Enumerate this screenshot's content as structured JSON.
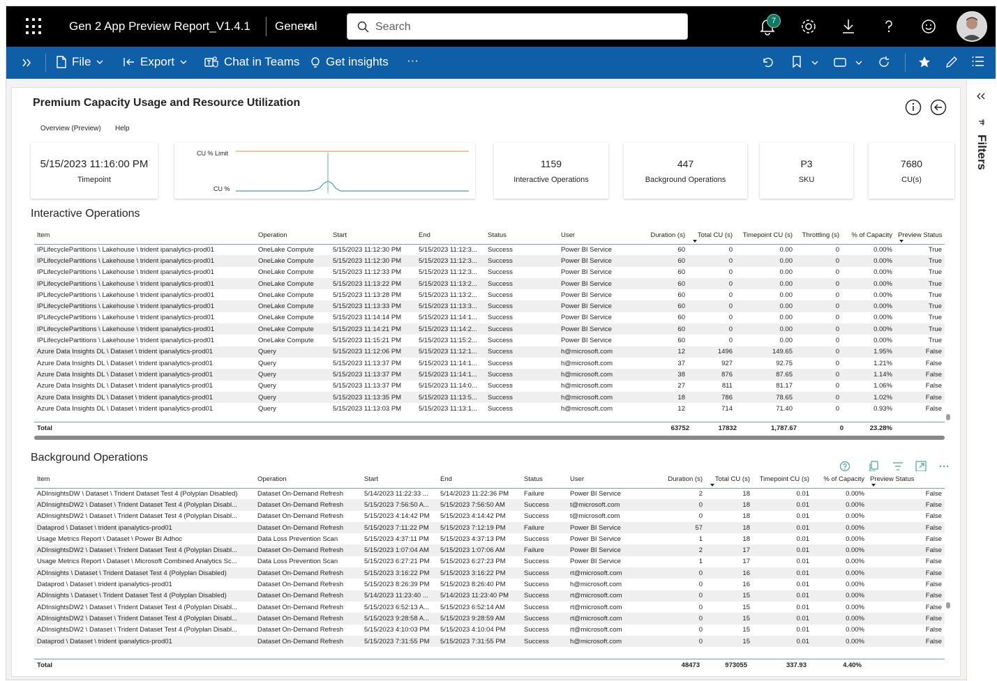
{
  "topbar": {
    "app_title": "Gen 2 App Preview Report_V1.4.1",
    "workspace": "General",
    "search_placeholder": "Search",
    "notification_count": "7"
  },
  "commandbar": {
    "file_label": "File",
    "export_label": "Export",
    "chat_label": "Chat in Teams",
    "insights_label": "Get insights",
    "more_label": "···"
  },
  "report": {
    "title": "Premium Capacity Usage and Resource Utilization",
    "pages": [
      "Overview (Preview)",
      "Help"
    ],
    "cards": {
      "timepoint_value": "5/15/2023 11:16:00 PM",
      "timepoint_label": "Timepoint",
      "interactive_value": "1159",
      "interactive_label": "Interactive Operations",
      "background_value": "447",
      "background_label": "Background Operations",
      "sku_value": "P3",
      "sku_label": "SKU",
      "cu_value": "7680",
      "cu_label": "CU(s)"
    },
    "sparkline": {
      "limit_label": "CU % Limit",
      "cu_label": "CU %",
      "limit_color": "#e8a45b",
      "cu_color": "#41a89b"
    }
  },
  "filters": {
    "label": "Filters"
  },
  "interactive": {
    "title": "Interactive Operations",
    "columns": [
      "Item",
      "Operation",
      "Start",
      "End",
      "Status",
      "User",
      "Duration (s)",
      "Total CU (s)",
      "Timepoint CU (s)",
      "Throttling (s)",
      "% of Capacity",
      "Preview Status"
    ],
    "rows": [
      [
        "IPLifecyclePartitions \\ Lakehouse \\ trident ipanalytics-prod01",
        "OneLake Compute",
        "5/15/2023 11:12:30 PM",
        "5/15/2023 11:12:3...",
        "Success",
        "Power BI Service",
        "60",
        "0",
        "0.00",
        "0",
        "0.00%",
        "True"
      ],
      [
        "IPLifecyclePartitions \\ Lakehouse \\ trident ipanalytics-prod01",
        "OneLake Compute",
        "5/15/2023 11:12:30 PM",
        "5/15/2023 11:12:3...",
        "Success",
        "Power BI Service",
        "60",
        "0",
        "0.00",
        "0",
        "0.00%",
        "True"
      ],
      [
        "IPLifecyclePartitions \\ Lakehouse \\ trident ipanalytics-prod01",
        "OneLake Compute",
        "5/15/2023 11:12:33 PM",
        "5/15/2023 11:12:3...",
        "Success",
        "Power BI Service",
        "60",
        "0",
        "0.00",
        "0",
        "0.00%",
        "True"
      ],
      [
        "IPLifecyclePartitions \\ Lakehouse \\ trident ipanalytics-prod01",
        "OneLake Compute",
        "5/15/2023 11:13:22 PM",
        "5/15/2023 11:13:2...",
        "Success",
        "Power BI Service",
        "60",
        "0",
        "0.00",
        "0",
        "0.00%",
        "True"
      ],
      [
        "IPLifecyclePartitions \\ Lakehouse \\ trident ipanalytics-prod01",
        "OneLake Compute",
        "5/15/2023 11:13:28 PM",
        "5/15/2023 11:13:2...",
        "Success",
        "Power BI Service",
        "60",
        "0",
        "0.00",
        "0",
        "0.00%",
        "True"
      ],
      [
        "IPLifecyclePartitions \\ Lakehouse \\ trident ipanalytics-prod01",
        "OneLake Compute",
        "5/15/2023 11:13:33 PM",
        "5/15/2023 11:13:3...",
        "Success",
        "Power BI Service",
        "60",
        "0",
        "0.00",
        "0",
        "0.00%",
        "True"
      ],
      [
        "IPLifecyclePartitions \\ Lakehouse \\ trident ipanalytics-prod01",
        "OneLake Compute",
        "5/15/2023 11:14:14 PM",
        "5/15/2023 11:14:1...",
        "Success",
        "Power BI Service",
        "60",
        "0",
        "0.00",
        "0",
        "0.00%",
        "True"
      ],
      [
        "IPLifecyclePartitions \\ Lakehouse \\ trident ipanalytics-prod01",
        "OneLake Compute",
        "5/15/2023 11:14:21 PM",
        "5/15/2023 11:14:2...",
        "Success",
        "Power BI Service",
        "60",
        "0",
        "0.00",
        "0",
        "0.00%",
        "True"
      ],
      [
        "IPLifecyclePartitions \\ Lakehouse \\ trident ipanalytics-prod01",
        "OneLake Compute",
        "5/15/2023 11:15:21 PM",
        "5/15/2023 11:15:2...",
        "Success",
        "Power BI Service",
        "60",
        "0",
        "0.00",
        "0",
        "0.00%",
        "True"
      ],
      [
        "Azure Data Insights DL \\ Dataset \\ trident ipanalytics-prod01",
        "Query",
        "5/15/2023 11:12:06 PM",
        "5/15/2023 11:12:1...",
        "Success",
        "h@microsoft.com",
        "12",
        "1496",
        "149.65",
        "0",
        "1.95%",
        "False"
      ],
      [
        "Azure Data Insights DL \\ Dataset \\ trident ipanalytics-prod01",
        "Query",
        "5/15/2023 11:13:37 PM",
        "5/15/2023 11:14:1...",
        "Success",
        "h@microsoft.com",
        "37",
        "927",
        "92.75",
        "0",
        "1.21%",
        "False"
      ],
      [
        "Azure Data Insights DL \\ Dataset \\ trident ipanalytics-prod01",
        "Query",
        "5/15/2023 11:13:37 PM",
        "5/15/2023 11:14:1...",
        "Success",
        "h@microsoft.com",
        "38",
        "876",
        "87.65",
        "0",
        "1.14%",
        "False"
      ],
      [
        "Azure Data Insights DL \\ Dataset \\ trident ipanalytics-prod01",
        "Query",
        "5/15/2023 11:13:37 PM",
        "5/15/2023 11:14:0...",
        "Success",
        "h@microsoft.com",
        "27",
        "811",
        "81.17",
        "0",
        "1.06%",
        "False"
      ],
      [
        "Azure Data Insights DL \\ Dataset \\ trident ipanalytics-prod01",
        "Query",
        "5/15/2023 11:13:35 PM",
        "5/15/2023 11:13:5...",
        "Success",
        "h@microsoft.com",
        "18",
        "786",
        "78.65",
        "0",
        "1.02%",
        "False"
      ],
      [
        "Azure Data Insights DL \\ Dataset \\ trident ipanalytics-prod01",
        "Query",
        "5/15/2023 11:13:03 PM",
        "5/15/2023 11:13:1...",
        "Success",
        "h@microsoft.com",
        "12",
        "714",
        "71.40",
        "0",
        "0.93%",
        "False"
      ]
    ],
    "total": {
      "label": "Total",
      "duration": "63752",
      "total_cu": "17832",
      "timepoint_cu": "1,787.67",
      "throttling": "0",
      "pct": "23.28%"
    }
  },
  "background": {
    "title": "Background Operations",
    "columns": [
      "Item",
      "Operation",
      "Start",
      "End",
      "Status",
      "User",
      "Duration (s)",
      "Total CU (s)",
      "Timepoint CU (s)",
      "% of Capacity",
      "Preview Status"
    ],
    "rows": [
      [
        "ADInsightsDW \\ Dataset \\ Trident Dataset Test 4 (Polyplan Disabled)",
        "Dataset On-Demand Refresh",
        "5/14/2023 11:22:33 ...",
        "5/14/2023 11:22:36 PM",
        "Failure",
        "Power BI Service",
        "2",
        "18",
        "0.01",
        "0.00%",
        "False"
      ],
      [
        "ADInsightsDW2 \\ Dataset \\ Trident Dataset Test 4 (Polyplan Disabl...",
        "Dataset On-Demand Refresh",
        "5/15/2023 7:56:50 A...",
        "5/15/2023 7:56:50 AM",
        "Success",
        "t@microsoft.com",
        "0",
        "18",
        "0.01",
        "0.00%",
        "False"
      ],
      [
        "ADInsightsDW2 \\ Dataset \\ Trident Dataset Test 4 (Polyplan Disabl...",
        "Dataset On-Demand Refresh",
        "5/15/2023 4:14:42 PM",
        "5/15/2023 4:14:42 PM",
        "Success",
        "t@microsoft.com",
        "0",
        "18",
        "0.01",
        "0.00%",
        "False"
      ],
      [
        "Dataprod \\ Dataset \\ trident ipanalytics-prod01",
        "Dataset On-Demand Refresh",
        "5/15/2023 7:11:22 PM",
        "5/15/2023 7:12:19 PM",
        "Failure",
        "Power BI Service",
        "57",
        "18",
        "0.01",
        "0.00%",
        "False"
      ],
      [
        "Usage Metrics Report \\ Dataset \\ Power BI Adhoc",
        "Data Loss Prevention Scan",
        "5/15/2023 4:37:11 PM",
        "5/15/2023 4:37:13 PM",
        "Success",
        "Power BI Service",
        "1",
        "18",
        "0.01",
        "0.00%",
        "False"
      ],
      [
        "ADInsightsDW2 \\ Dataset \\ Trident Dataset Test 4 (Polyplan Disabl...",
        "Dataset On-Demand Refresh",
        "5/15/2023 1:07:04 AM",
        "5/15/2023 1:07:06 AM",
        "Failure",
        "Power BI Service",
        "2",
        "17",
        "0.01",
        "0.00%",
        "False"
      ],
      [
        "Usage Metrics Report \\ Dataset \\ Microsoft Combined Analytics Sc...",
        "Data Loss Prevention Scan",
        "5/15/2023 6:27:21 PM",
        "5/15/2023 6:27:23 PM",
        "Success",
        "Power BI Service",
        "1",
        "17",
        "0.01",
        "0.00%",
        "False"
      ],
      [
        "ADInsights \\ Dataset \\ Trident Dataset Test 4 (Polyplan Disabled)",
        "Dataset On-Demand Refresh",
        "5/15/2023 3:16:22 PM",
        "5/15/2023 3:16:22 PM",
        "Success",
        "rt@microsoft.com",
        "0",
        "16",
        "0.01",
        "0.00%",
        "False"
      ],
      [
        "Dataprod \\ Dataset \\ trident ipanalytics-prod01",
        "Dataset On-Demand Refresh",
        "5/15/2023 8:26:39 PM",
        "5/15/2023 8:26:40 PM",
        "Success",
        "h@microsoft.com",
        "0",
        "16",
        "0.01",
        "0.00%",
        "False"
      ],
      [
        "ADInsights \\ Dataset \\ Trident Dataset Test 4 (Polyplan Disabled)",
        "Dataset On-Demand Refresh",
        "5/14/2023 11:23:40 ...",
        "5/14/2023 11:23:40 PM",
        "Success",
        "rt@microsoft.com",
        "0",
        "15",
        "0.01",
        "0.00%",
        "False"
      ],
      [
        "ADInsightsDW2 \\ Dataset \\ Trident Dataset Test 4 (Polyplan Disabl...",
        "Dataset On-Demand Refresh",
        "5/15/2023 6:52:13 A...",
        "5/15/2023 6:52:14 AM",
        "Success",
        "rt@microsoft.com",
        "0",
        "15",
        "0.01",
        "0.00%",
        "False"
      ],
      [
        "ADInsightsDW2 \\ Dataset \\ Trident Dataset Test 4 (Polyplan Disabl...",
        "Dataset On-Demand Refresh",
        "5/15/2023 9:28:58 A...",
        "5/15/2023 9:28:59 AM",
        "Success",
        "rt@microsoft.com",
        "0",
        "15",
        "0.01",
        "0.00%",
        "False"
      ],
      [
        "ADInsightsDW2 \\ Dataset \\ Trident Dataset Test 4 (Polyplan Disabl...",
        "Dataset On-Demand Refresh",
        "5/15/2023 4:10:03 PM",
        "5/15/2023 4:10:04 PM",
        "Success",
        "rt@microsoft.com",
        "0",
        "15",
        "0.01",
        "0.00%",
        "False"
      ],
      [
        "Dataprod \\ Dataset \\ trident ipanalytics-prod01",
        "Dataset On-Demand Refresh",
        "5/15/2023 7:31:55 PM",
        "5/15/2023 7:31:55 PM",
        "Success",
        "h@microsoft.com",
        "0",
        "15",
        "0.01",
        "0.00%",
        "False"
      ]
    ],
    "total": {
      "label": "Total",
      "duration": "48473",
      "total_cu": "973055",
      "timepoint_cu": "337.93",
      "pct": "4.40%"
    }
  }
}
